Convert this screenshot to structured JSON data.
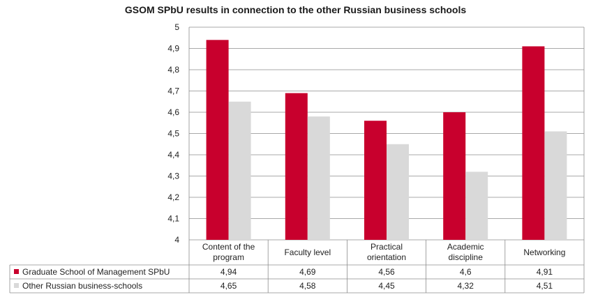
{
  "chart_data": {
    "type": "bar",
    "title": "GSOM SPbU results in connection to the other Russian business schools",
    "categories": [
      [
        "Content of the",
        "program"
      ],
      [
        "Faculty level"
      ],
      [
        "Practical",
        "orientation"
      ],
      [
        "Academic",
        "discipline"
      ],
      [
        "Networking"
      ]
    ],
    "series": [
      {
        "name": "Graduate School of Management SPbU",
        "color": "#c8002d",
        "values": [
          4.94,
          4.69,
          4.56,
          4.6,
          4.91
        ],
        "value_labels": [
          "4,94",
          "4,69",
          "4,56",
          "4,6",
          "4,91"
        ]
      },
      {
        "name": "Other Russian business-schools",
        "color": "#d9d9d9",
        "values": [
          4.65,
          4.58,
          4.45,
          4.32,
          4.51
        ],
        "value_labels": [
          "4,65",
          "4,58",
          "4,45",
          "4,32",
          "4,51"
        ]
      }
    ],
    "ylim": [
      4,
      5
    ],
    "yticks": [
      "4",
      "4,1",
      "4,2",
      "4,3",
      "4,4",
      "4,5",
      "4,6",
      "4,7",
      "4,8",
      "4,9",
      "5"
    ],
    "grid": true,
    "legend": "data-table"
  }
}
